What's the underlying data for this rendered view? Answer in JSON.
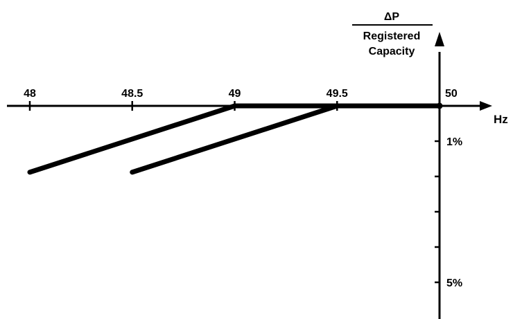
{
  "chart_data": {
    "type": "line",
    "title": "",
    "xlabel": "Hz",
    "ylabel": {
      "numerator": "ΔP",
      "denominator_line1": "Registered",
      "denominator_line2": "Capacity"
    },
    "x_ticks": [
      "48",
      "48.5",
      "49",
      "49.5",
      "50"
    ],
    "y_ticks": [
      1,
      2,
      3,
      4,
      5
    ],
    "y_tick_labels": {
      "1": "1%",
      "5": "5%"
    },
    "xlim": [
      48,
      50
    ],
    "ylim": [
      0,
      5
    ],
    "y_direction": "downward",
    "grid": false,
    "series": [
      {
        "x": [
          48,
          49,
          50
        ],
        "y": [
          1.88,
          0,
          0
        ]
      },
      {
        "x": [
          48.5,
          49.5,
          50
        ],
        "y": [
          1.88,
          0,
          0
        ]
      }
    ]
  }
}
